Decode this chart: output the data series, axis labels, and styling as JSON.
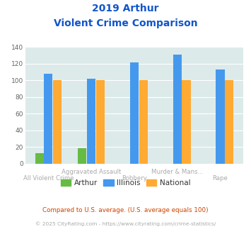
{
  "title_line1": "2019 Arthur",
  "title_line2": "Violent Crime Comparison",
  "categories": [
    "All Violent Crime",
    "Aggravated Assault",
    "Robbery",
    "Murder & Mans...",
    "Rape"
  ],
  "cat_top_labels": [
    "",
    "Aggravated Assault",
    "",
    "Murder & Mans...",
    ""
  ],
  "cat_bot_labels": [
    "All Violent Crime",
    "",
    "Robbery",
    "",
    "Rape"
  ],
  "arthur": [
    13,
    19,
    0,
    0,
    0
  ],
  "illinois": [
    108,
    102,
    121,
    131,
    113
  ],
  "national": [
    100,
    100,
    100,
    100,
    100
  ],
  "arthur_color": "#66bb44",
  "illinois_color": "#4499ee",
  "national_color": "#ffaa33",
  "bg_color": "#ddeaea",
  "title_color": "#1155cc",
  "ylim": [
    0,
    140
  ],
  "yticks": [
    0,
    20,
    40,
    60,
    80,
    100,
    120,
    140
  ],
  "label_color": "#aaaaaa",
  "footnote1": "Compared to U.S. average. (U.S. average equals 100)",
  "footnote2": "© 2025 CityRating.com - https://www.cityrating.com/crime-statistics/",
  "footnote1_color": "#cc4400",
  "footnote2_color": "#aaaaaa",
  "bar_width": 0.2,
  "title_fontsize": 10,
  "label_fontsize": 6.2,
  "legend_fontsize": 7.5
}
